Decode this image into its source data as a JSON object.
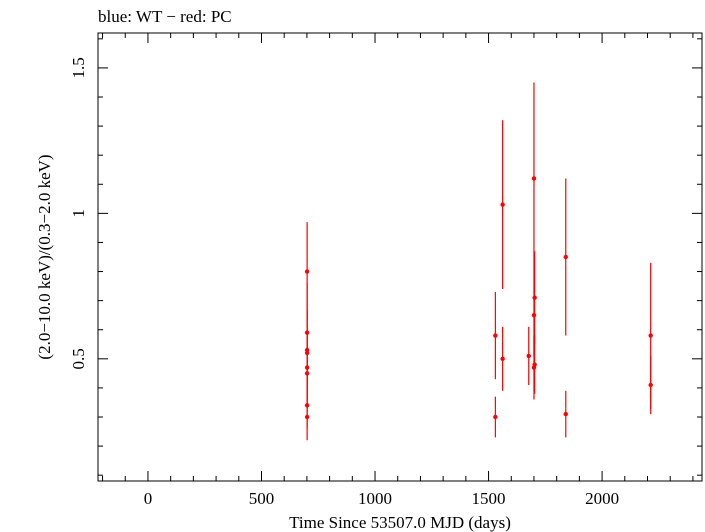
{
  "chart_data": {
    "type": "scatter",
    "title": "blue: WT − red: PC",
    "xlabel": "Time Since 53507.0 MJD (days)",
    "ylabel": "(2.0−10.0 keV)/(0.3−2.0 keV)",
    "xlim": [
      -220,
      2440
    ],
    "ylim": [
      0.08,
      1.62
    ],
    "x_ticks": [
      0,
      500,
      1000,
      1500,
      2000
    ],
    "x_tick_labels": [
      "0",
      "500",
      "1000",
      "1500",
      "2000"
    ],
    "y_ticks": [
      0.5,
      1,
      1.5
    ],
    "y_tick_labels": [
      "0.5",
      "1",
      "1.5"
    ],
    "grid": false,
    "series": [
      {
        "color": "#ff0000",
        "points": [
          {
            "x": 701,
            "y": 0.8,
            "err": 0.17
          },
          {
            "x": 701,
            "y": 0.59,
            "err": 0.17
          },
          {
            "x": 701,
            "y": 0.53,
            "err": 0.14
          },
          {
            "x": 701,
            "y": 0.52,
            "err": 0.14
          },
          {
            "x": 701,
            "y": 0.47,
            "err": 0.12
          },
          {
            "x": 701,
            "y": 0.45,
            "err": 0.12
          },
          {
            "x": 701,
            "y": 0.34,
            "err": 0.08
          },
          {
            "x": 701,
            "y": 0.3,
            "err": 0.08
          },
          {
            "x": 1530,
            "y": 0.58,
            "err": 0.15
          },
          {
            "x": 1530,
            "y": 0.3,
            "err": 0.07
          },
          {
            "x": 1562,
            "y": 1.03,
            "err": 0.29
          },
          {
            "x": 1562,
            "y": 0.5,
            "err": 0.11
          },
          {
            "x": 1677,
            "y": 0.51,
            "err": 0.1
          },
          {
            "x": 1700,
            "y": 1.12,
            "err": 0.33
          },
          {
            "x": 1703,
            "y": 0.71,
            "err": 0.16
          },
          {
            "x": 1700,
            "y": 0.65,
            "err": 0.14
          },
          {
            "x": 1703,
            "y": 0.48,
            "err": 0.1
          },
          {
            "x": 1700,
            "y": 0.47,
            "err": 0.11
          },
          {
            "x": 1840,
            "y": 0.85,
            "err": 0.27
          },
          {
            "x": 1840,
            "y": 0.31,
            "err": 0.08
          },
          {
            "x": 2214,
            "y": 0.58,
            "err": 0.25
          },
          {
            "x": 2214,
            "y": 0.41,
            "err": 0.1
          }
        ]
      }
    ]
  }
}
